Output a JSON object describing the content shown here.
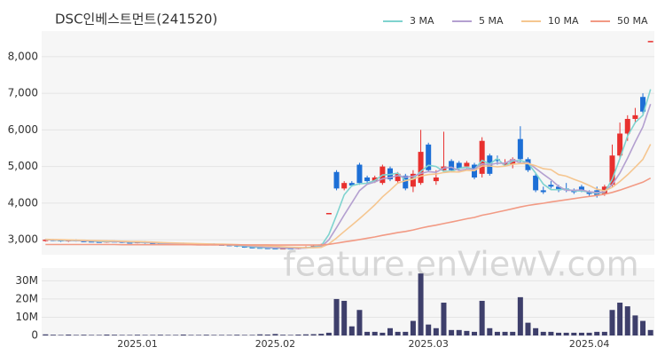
{
  "chart_data": {
    "type": "candlestick",
    "title": "DSC인베스트먼트(241520)",
    "watermark": "feature.enViewV.com",
    "categories": [
      null,
      null,
      null,
      null,
      null,
      null,
      null,
      null,
      null,
      null,
      null,
      null,
      "2025.01",
      null,
      null,
      null,
      null,
      null,
      null,
      null,
      null,
      null,
      null,
      null,
      null,
      null,
      null,
      null,
      null,
      null,
      "2025.02",
      null,
      null,
      null,
      null,
      null,
      null,
      null,
      null,
      null,
      null,
      null,
      null,
      null,
      null,
      null,
      null,
      null,
      null,
      null,
      "2025.03",
      null,
      null,
      null,
      null,
      null,
      null,
      null,
      null,
      null,
      null,
      null,
      null,
      null,
      null,
      null,
      null,
      null,
      null,
      null,
      null,
      "2025.04",
      null,
      null,
      null,
      null,
      null,
      null,
      null,
      null
    ],
    "open": [
      2970,
      3000,
      2990,
      2960,
      2990,
      2970,
      2960,
      2950,
      2940,
      2960,
      2950,
      2930,
      2920,
      2940,
      2910,
      2900,
      2890,
      2880,
      2900,
      2890,
      2880,
      2870,
      2880,
      2870,
      2860,
      2850,
      2820,
      2800,
      2790,
      2780,
      2770,
      2760,
      2770,
      2760,
      2780,
      2800,
      2830,
      3730,
      4850,
      4400,
      4550,
      5050,
      4700,
      4600,
      4550,
      4950,
      4600,
      4750,
      4450,
      4550,
      5600,
      4600,
      4900,
      5150,
      5100,
      5000,
      5050,
      4800,
      5300,
      5200,
      5050,
      5050,
      5750,
      5200,
      4750,
      4350,
      4500,
      4450,
      4400,
      4350,
      4450,
      4300,
      4350,
      4250,
      4500,
      5300,
      5900,
      6300,
      6900,
      8430
    ],
    "high": [
      3020,
      3020,
      3010,
      3010,
      3010,
      2990,
      2980,
      2970,
      2980,
      2980,
      2970,
      2950,
      2960,
      2960,
      2930,
      2920,
      2910,
      2920,
      2920,
      2910,
      2900,
      2900,
      2900,
      2890,
      2880,
      2870,
      2840,
      2820,
      2810,
      2800,
      2790,
      2790,
      2790,
      2800,
      2820,
      2850,
      2890,
      3730,
      4900,
      4600,
      4600,
      5100,
      4750,
      4750,
      5050,
      5000,
      4850,
      4800,
      4900,
      6000,
      5650,
      4900,
      5950,
      5200,
      5150,
      5150,
      5100,
      5800,
      5350,
      5300,
      5200,
      5250,
      6100,
      5250,
      4800,
      4450,
      4600,
      4500,
      4550,
      4400,
      4500,
      4350,
      4450,
      4500,
      5600,
      6200,
      6400,
      6600,
      7000,
      8430
    ],
    "low": [
      2950,
      2960,
      2940,
      2940,
      2950,
      2940,
      2930,
      2920,
      2920,
      2930,
      2910,
      2900,
      2900,
      2890,
      2880,
      2870,
      2860,
      2860,
      2870,
      2860,
      2850,
      2850,
      2850,
      2840,
      2830,
      2800,
      2780,
      2770,
      2760,
      2750,
      2740,
      2740,
      2740,
      2740,
      2760,
      2780,
      2810,
      3730,
      4350,
      4350,
      4450,
      4500,
      4550,
      4550,
      4500,
      4600,
      4550,
      4350,
      4300,
      4500,
      4850,
      4500,
      4850,
      4850,
      4900,
      4950,
      4650,
      4700,
      4750,
      5050,
      5000,
      4950,
      5100,
      4850,
      4300,
      4250,
      4400,
      4300,
      4300,
      4250,
      4300,
      4200,
      4150,
      4200,
      4450,
      5200,
      5700,
      6200,
      6450,
      8430
    ],
    "close": [
      3000,
      2980,
      2960,
      2990,
      2970,
      2960,
      2950,
      2940,
      2960,
      2950,
      2930,
      2920,
      2940,
      2910,
      2900,
      2890,
      2880,
      2900,
      2890,
      2880,
      2870,
      2880,
      2870,
      2860,
      2850,
      2820,
      2800,
      2790,
      2780,
      2770,
      2760,
      2770,
      2760,
      2780,
      2800,
      2830,
      2870,
      3730,
      4400,
      4550,
      4480,
      4550,
      4600,
      4700,
      5000,
      4650,
      4800,
      4400,
      4800,
      5400,
      4900,
      4700,
      5000,
      4900,
      4950,
      5100,
      4700,
      5700,
      4800,
      5150,
      5100,
      5200,
      5200,
      4900,
      4350,
      4300,
      4450,
      4350,
      4350,
      4300,
      4350,
      4250,
      4200,
      4450,
      5300,
      5900,
      6300,
      6400,
      6500,
      8430
    ],
    "volume": [
      600000,
      400000,
      300000,
      500000,
      300000,
      400000,
      300000,
      300000,
      500000,
      400000,
      300000,
      300000,
      400000,
      300000,
      300000,
      400000,
      300000,
      300000,
      500000,
      300000,
      300000,
      400000,
      300000,
      300000,
      300000,
      400000,
      300000,
      300000,
      600000,
      500000,
      800000,
      400000,
      300000,
      500000,
      600000,
      700000,
      900000,
      1500000,
      20000000,
      19000000,
      5000000,
      14000000,
      2000000,
      2000000,
      1500000,
      4000000,
      2000000,
      2000000,
      8000000,
      34000000,
      6000000,
      4000000,
      18000000,
      3000000,
      3000000,
      2500000,
      2000000,
      19000000,
      4000000,
      2000000,
      2000000,
      2000000,
      21000000,
      7000000,
      4000000,
      2000000,
      2000000,
      1500000,
      1500000,
      1500000,
      1500000,
      1500000,
      2000000,
      2000000,
      14000000,
      18000000,
      16000000,
      11000000,
      8000000,
      3000000
    ],
    "series": [
      {
        "name": "3 MA",
        "color": "#7fd3cf",
        "values": [
          3000,
          2990,
          2980,
          2977,
          2973,
          2973,
          2960,
          2950,
          2950,
          2950,
          2947,
          2933,
          2930,
          2923,
          2917,
          2900,
          2890,
          2890,
          2890,
          2890,
          2880,
          2877,
          2873,
          2870,
          2860,
          2843,
          2823,
          2803,
          2790,
          2780,
          2770,
          2767,
          2763,
          2770,
          2780,
          2803,
          2833,
          3143,
          3667,
          4227,
          4477,
          4527,
          4543,
          4617,
          4767,
          4783,
          4817,
          4617,
          4667,
          4867,
          5033,
          5000,
          4867,
          4867,
          4950,
          4983,
          4917,
          5167,
          5067,
          5217,
          5017,
          5150,
          5167,
          5100,
          4817,
          4517,
          4367,
          4367,
          4383,
          4333,
          4333,
          4300,
          4267,
          4300,
          4650,
          5217,
          5833,
          6200,
          6400,
          7110
        ]
      },
      {
        "name": "5 MA",
        "color": "#b4a0d0",
        "values": [
          3000,
          2995,
          2990,
          2985,
          2980,
          2972,
          2966,
          2962,
          2960,
          2952,
          2946,
          2940,
          2940,
          2930,
          2920,
          2912,
          2900,
          2894,
          2892,
          2888,
          2884,
          2880,
          2878,
          2872,
          2866,
          2856,
          2840,
          2822,
          2808,
          2792,
          2780,
          2774,
          2768,
          2768,
          2774,
          2788,
          2808,
          2998,
          3326,
          3676,
          4006,
          4342,
          4516,
          4576,
          4666,
          4700,
          4750,
          4710,
          4730,
          4810,
          4860,
          4840,
          4960,
          4980,
          4890,
          4930,
          4930,
          5070,
          5050,
          5090,
          5090,
          5190,
          5090,
          5110,
          4950,
          4790,
          4640,
          4460,
          4350,
          4350,
          4360,
          4310,
          4290,
          4310,
          4510,
          4820,
          5230,
          5670,
          6080,
          6706
        ]
      },
      {
        "name": "10 MA",
        "color": "#f5c690",
        "values": [
          3010,
          3005,
          3000,
          2995,
          2990,
          2985,
          2978,
          2972,
          2968,
          2965,
          2958,
          2952,
          2950,
          2945,
          2935,
          2925,
          2918,
          2910,
          2904,
          2897,
          2890,
          2887,
          2882,
          2878,
          2873,
          2866,
          2857,
          2848,
          2838,
          2828,
          2818,
          2807,
          2796,
          2788,
          2782,
          2780,
          2791,
          2885,
          3047,
          3225,
          3397,
          3575,
          3759,
          3951,
          4171,
          4353,
          4546,
          4613,
          4653,
          4738,
          4780,
          4795,
          4835,
          4855,
          4850,
          4895,
          4885,
          5015,
          5015,
          4990,
          5010,
          5060,
          5080,
          5080,
          5020,
          4940,
          4915,
          4780,
          4735,
          4650,
          4575,
          4480,
          4380,
          4335,
          4430,
          4590,
          4775,
          4980,
          5195,
          5608
        ]
      },
      {
        "name": "50 MA",
        "color": "#f29a84",
        "values": [
          2870,
          2870,
          2870,
          2870,
          2870,
          2870,
          2870,
          2870,
          2870,
          2870,
          2865,
          2865,
          2865,
          2865,
          2865,
          2865,
          2865,
          2865,
          2865,
          2865,
          2860,
          2860,
          2860,
          2860,
          2860,
          2860,
          2860,
          2860,
          2860,
          2860,
          2855,
          2855,
          2855,
          2855,
          2855,
          2855,
          2855,
          2873,
          2904,
          2938,
          2971,
          3005,
          3040,
          3076,
          3118,
          3154,
          3194,
          3226,
          3266,
          3318,
          3360,
          3397,
          3441,
          3483,
          3526,
          3572,
          3609,
          3668,
          3708,
          3754,
          3799,
          3847,
          3894,
          3935,
          3966,
          3996,
          4030,
          4061,
          4092,
          4122,
          4153,
          4182,
          4210,
          4243,
          4293,
          4355,
          4425,
          4497,
          4571,
          4683
        ]
      }
    ],
    "up_color": "#e8302e",
    "down_color": "#1d6fd6",
    "volume_color": "#3e3f6b",
    "ylim": [
      2590,
      8700
    ],
    "yticks": [
      {
        "value": 3000,
        "label": "3,000"
      },
      {
        "value": 4000,
        "label": "4,000"
      },
      {
        "value": 5000,
        "label": "5,000"
      },
      {
        "value": 6000,
        "label": "6,000"
      },
      {
        "value": 7000,
        "label": "7,000"
      },
      {
        "value": 8000,
        "label": "8,000"
      }
    ],
    "volume_ylim": [
      0,
      37000000
    ],
    "volume_yticks": [
      0,
      {
        "value": 10000000,
        "label": "10M"
      },
      {
        "value": 20000000,
        "label": "20M"
      },
      {
        "value": 30000000,
        "label": "30M"
      }
    ],
    "grid": true
  }
}
